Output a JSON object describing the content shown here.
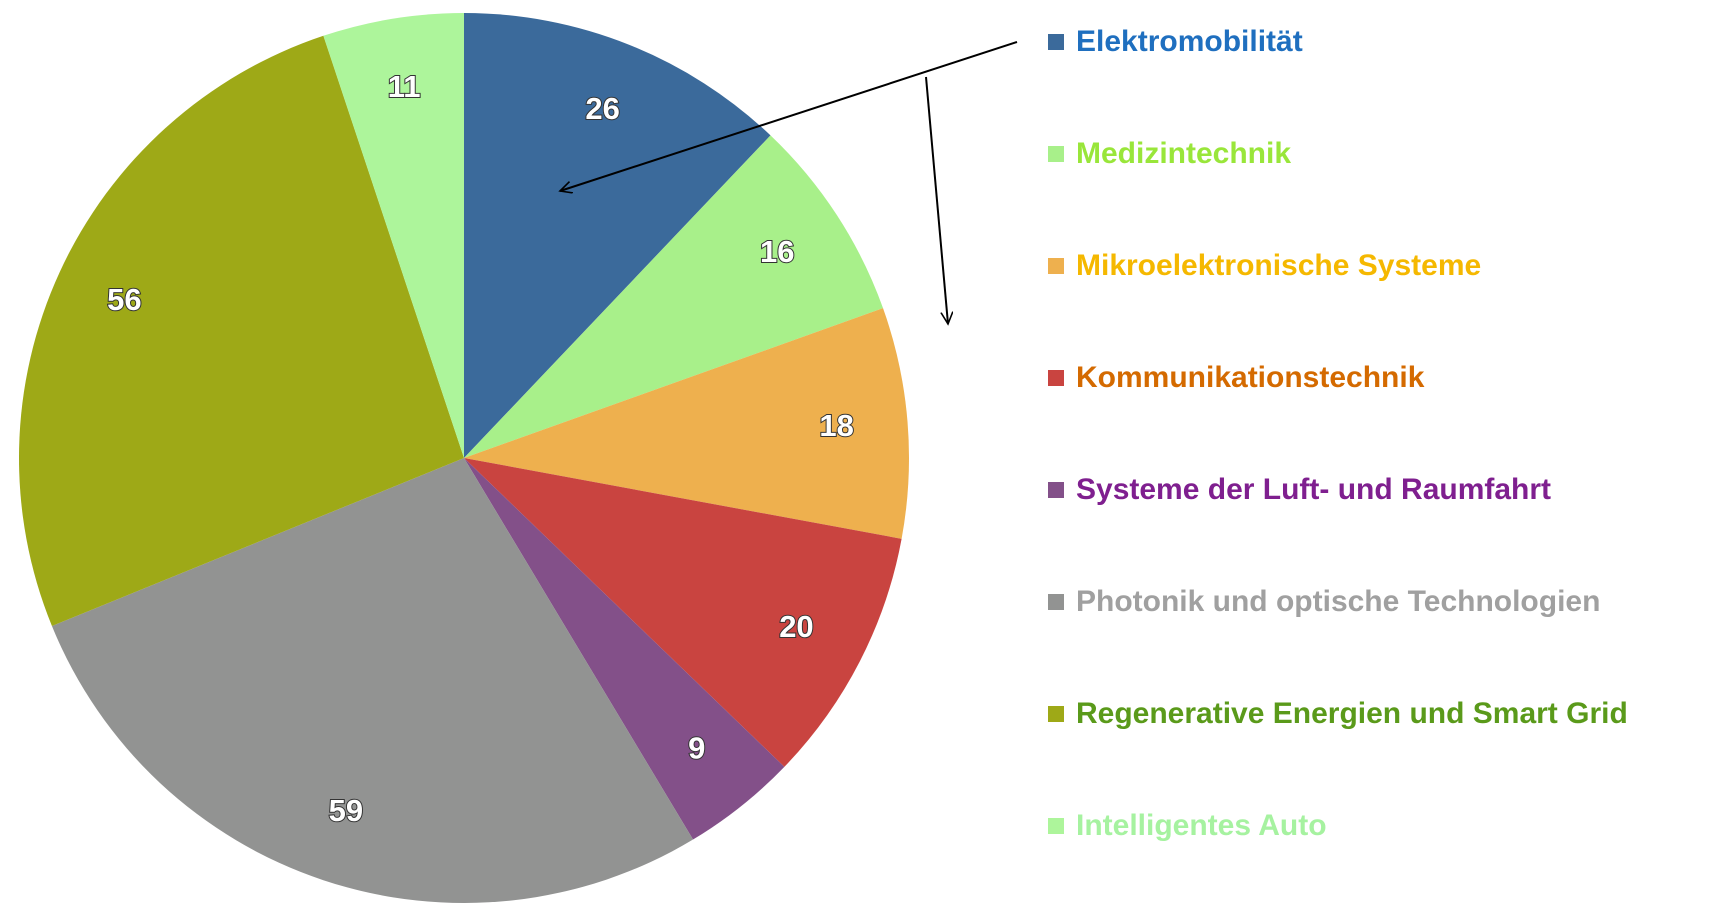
{
  "chart_data": {
    "type": "pie",
    "categories": [
      "Elektromobilität",
      "Medizintechnik",
      "Mikroelektronische Systeme",
      "Kommunikationstechnik",
      "Systeme der Luft- und Raumfahrt",
      "Photonik und optische Technologien",
      "Regenerative Energien und Smart Grid",
      "Intelligentes Auto"
    ],
    "values": [
      26,
      16,
      18,
      20,
      9,
      59,
      56,
      11
    ],
    "colors": [
      "#3b6a9b",
      "#a8f08a",
      "#eeb04e",
      "#c94440",
      "#835089",
      "#929392",
      "#9ea917",
      "#adf59b"
    ],
    "legend_text_colors": [
      "#1f6fbf",
      "#99e63a",
      "#f5b800",
      "#d46a00",
      "#7f1f8f",
      "#a0a0a0",
      "#5a9a1a",
      "#a6f2a0"
    ],
    "legend": "right"
  }
}
